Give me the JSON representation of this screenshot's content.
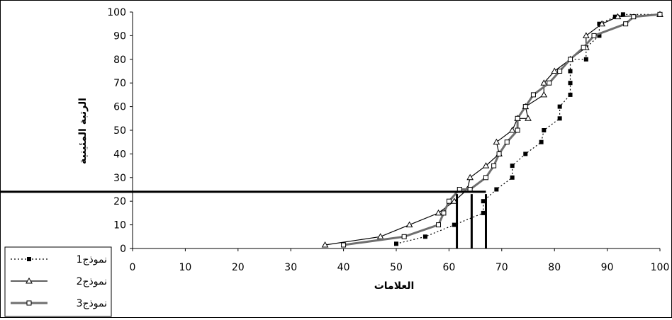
{
  "chart_data": {
    "type": "line",
    "xlabel": "العلامات",
    "ylabel": "الرتبة المئينية",
    "xlim": [
      0,
      100
    ],
    "ylim": [
      0,
      100
    ],
    "x_ticks": [
      "0",
      "10",
      "20",
      "30",
      "40",
      "50",
      "60",
      "70",
      "80",
      "90",
      "100"
    ],
    "y_ticks": [
      "0",
      "10",
      "20",
      "30",
      "40",
      "50",
      "60",
      "70",
      "80",
      "90",
      "100"
    ],
    "legend_position": "bottom-left",
    "series": [
      {
        "name": "نموذج1",
        "line": "dotted",
        "marker": "filled-square",
        "color": "#000000",
        "points": [
          [
            50,
            2
          ],
          [
            55.5,
            5
          ],
          [
            61,
            10
          ],
          [
            66.5,
            15
          ],
          [
            66.5,
            20
          ],
          [
            69,
            25
          ],
          [
            72,
            30
          ],
          [
            72,
            35
          ],
          [
            74.5,
            40
          ],
          [
            77.5,
            45
          ],
          [
            78,
            50
          ],
          [
            81,
            55
          ],
          [
            81,
            60
          ],
          [
            83,
            65
          ],
          [
            83,
            70
          ],
          [
            83,
            75
          ],
          [
            83,
            80
          ],
          [
            86,
            80
          ],
          [
            86,
            85
          ],
          [
            88.5,
            90
          ],
          [
            88.5,
            95
          ],
          [
            91.5,
            98
          ],
          [
            93,
            99
          ],
          [
            100,
            99
          ]
        ]
      },
      {
        "name": "نموذج2",
        "line": "solid",
        "marker": "open-triangle",
        "color": "#000000",
        "points": [
          [
            36.5,
            1.5
          ],
          [
            47,
            5
          ],
          [
            52.5,
            10
          ],
          [
            58,
            15
          ],
          [
            61,
            20
          ],
          [
            63.5,
            25
          ],
          [
            64,
            30
          ],
          [
            67,
            35
          ],
          [
            69.5,
            40
          ],
          [
            69,
            45
          ],
          [
            72,
            50
          ],
          [
            73,
            55
          ],
          [
            75,
            55
          ],
          [
            74.5,
            60
          ],
          [
            78,
            65
          ],
          [
            78,
            70
          ],
          [
            80,
            75
          ],
          [
            83,
            80
          ],
          [
            86,
            85
          ],
          [
            86,
            90
          ],
          [
            89,
            95
          ],
          [
            92,
            98
          ],
          [
            100,
            99
          ]
        ]
      },
      {
        "name": "نموذج3",
        "line": "solid-gray",
        "marker": "open-square",
        "color": "#6f6f6f",
        "points": [
          [
            40,
            1.5
          ],
          [
            51.5,
            5
          ],
          [
            58,
            10
          ],
          [
            59,
            15
          ],
          [
            60,
            20
          ],
          [
            62,
            25
          ],
          [
            64,
            25
          ],
          [
            67,
            30
          ],
          [
            68.5,
            35
          ],
          [
            69.5,
            40
          ],
          [
            71,
            45
          ],
          [
            73,
            50
          ],
          [
            73,
            55
          ],
          [
            74.5,
            60
          ],
          [
            76,
            65
          ],
          [
            79,
            70
          ],
          [
            81,
            75
          ],
          [
            83,
            80
          ],
          [
            85.5,
            85
          ],
          [
            87.5,
            90
          ],
          [
            93.5,
            95
          ],
          [
            95,
            98
          ],
          [
            100,
            99
          ]
        ]
      }
    ],
    "annotation_lines": {
      "horizontal": {
        "y": 24,
        "x_from": 0,
        "x_to": 67
      },
      "verticals": [
        {
          "x": 61.5,
          "y_to": 23
        },
        {
          "x": 64.3,
          "y_to": 23
        },
        {
          "x": 67,
          "y_to": 23
        }
      ]
    }
  }
}
